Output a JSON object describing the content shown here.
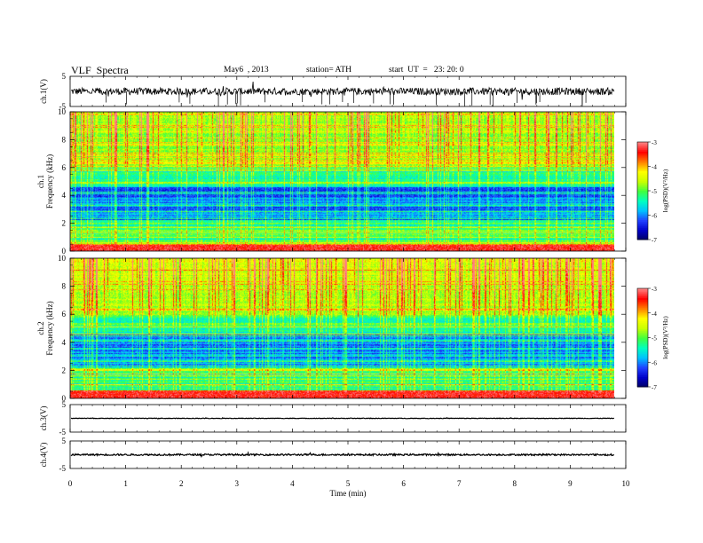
{
  "header": {
    "title": "VLF  Spectra",
    "date": "May6  , 2013",
    "station": "station= ATH",
    "start": "start  UT  =   23: 20: 0"
  },
  "colors": {
    "palette": [
      "#000060",
      "#0000c8",
      "#2040ff",
      "#00c0ff",
      "#00ffc0",
      "#40ff40",
      "#c8ff00",
      "#ffff00",
      "#ff8000",
      "#ff0000",
      "#ff8080"
    ],
    "trace": "#000000"
  },
  "chart_data": [
    {
      "type": "line",
      "panel": "ch1-waveform",
      "ylabel": "ch.1(V)",
      "ylim": [
        -5,
        5
      ],
      "yticks": [
        "5",
        "-5"
      ],
      "xlim": [
        0,
        10
      ],
      "description_values": {
        "mean_level": 0,
        "noise_amplitude": 1.2,
        "data_end_min": 9.8
      }
    },
    {
      "type": "heatmap",
      "panel": "ch1-spectrogram",
      "ylabel": "Frequency  (kHz)",
      "channel_label": "ch.1",
      "ylim": [
        0,
        10
      ],
      "yticks": [
        "0",
        "2",
        "4",
        "6",
        "8",
        "10"
      ],
      "xlim": [
        0,
        9.8
      ],
      "colorbar": {
        "label": "log(PSD)(V²/Hz)",
        "range": [
          -7,
          -3
        ],
        "ticks": [
          "-3",
          "-4",
          "-5",
          "-6",
          "-7"
        ]
      }
    },
    {
      "type": "heatmap",
      "panel": "ch2-spectrogram",
      "ylabel": "Frequency  (kHz)",
      "channel_label": "ch.2",
      "ylim": [
        0,
        10
      ],
      "yticks": [
        "0",
        "2",
        "4",
        "6",
        "8",
        "10"
      ],
      "xlim": [
        0,
        9.8
      ],
      "colorbar": {
        "label": "log(PSD)(V²/Hz)",
        "range": [
          -7,
          -3
        ],
        "ticks": [
          "-3",
          "-4",
          "-5",
          "-6",
          "-7"
        ]
      }
    },
    {
      "type": "line",
      "panel": "ch3-waveform",
      "ylabel": "ch.3(V)",
      "ylim": [
        -5,
        5
      ],
      "yticks": [
        "5",
        "-5"
      ],
      "xlim": [
        0,
        10
      ],
      "description_values": {
        "mean_level": 0,
        "noise_amplitude": 0.1,
        "data_end_min": 9.8
      }
    },
    {
      "type": "line",
      "panel": "ch4-waveform",
      "ylabel": "ch.4(V)",
      "ylim": [
        -5,
        5
      ],
      "yticks": [
        "5",
        "-5"
      ],
      "xlim": [
        0,
        10
      ],
      "xlabel": "Time  (min)",
      "xticks": [
        "0",
        "1",
        "2",
        "3",
        "4",
        "5",
        "6",
        "7",
        "8",
        "9",
        "10"
      ],
      "description_values": {
        "mean_level": 0,
        "noise_amplitude": 0.3,
        "data_end_min": 9.8
      }
    }
  ]
}
